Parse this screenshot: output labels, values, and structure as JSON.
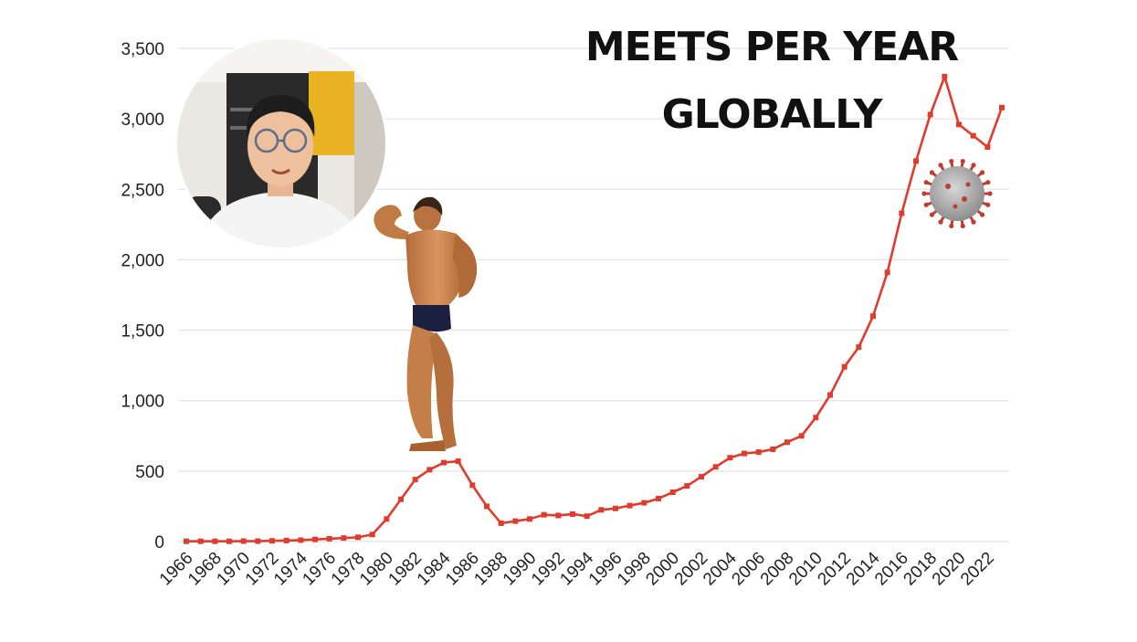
{
  "chart_data": {
    "type": "line",
    "title": [
      "MEETS PER YEAR",
      "GLOBALLY"
    ],
    "xlabel": "",
    "ylabel": "",
    "ylim": [
      0,
      3500
    ],
    "yticks": [
      0,
      500,
      1000,
      1500,
      2000,
      2500,
      3000,
      3500
    ],
    "ytick_labels": [
      "0",
      "500",
      "1,000",
      "1,500",
      "2,000",
      "2,500",
      "3,000",
      "3,500"
    ],
    "xlim": [
      1966,
      2023
    ],
    "xtick_labels": [
      "1966",
      "1968",
      "1970",
      "1972",
      "1974",
      "1976",
      "1978",
      "1980",
      "1982",
      "1984",
      "1986",
      "1988",
      "1990",
      "1992",
      "1994",
      "1996",
      "1998",
      "2000",
      "2002",
      "2004",
      "2006",
      "2008",
      "2010",
      "2012",
      "2014",
      "2016",
      "2018",
      "2020",
      "2022"
    ],
    "grid": true,
    "legend": "none",
    "series": [
      {
        "color": "#e03c2d",
        "x": [
          1966,
          1967,
          1968,
          1969,
          1970,
          1971,
          1972,
          1973,
          1974,
          1975,
          1976,
          1977,
          1978,
          1979,
          1980,
          1981,
          1982,
          1983,
          1984,
          1985,
          1986,
          1987,
          1988,
          1989,
          1990,
          1991,
          1992,
          1993,
          1994,
          1995,
          1996,
          1997,
          1998,
          1999,
          2000,
          2001,
          2002,
          2003,
          2004,
          2005,
          2006,
          2007,
          2008,
          2009,
          2010,
          2011,
          2012,
          2013,
          2014,
          2015,
          2016,
          2017,
          2018,
          2019,
          2020,
          2021,
          2022,
          2023
        ],
        "values": [
          2,
          2,
          2,
          2,
          3,
          3,
          5,
          7,
          10,
          15,
          20,
          25,
          30,
          50,
          160,
          300,
          440,
          510,
          560,
          570,
          400,
          250,
          130,
          145,
          160,
          190,
          185,
          195,
          180,
          225,
          235,
          255,
          275,
          305,
          350,
          395,
          460,
          530,
          595,
          625,
          635,
          655,
          705,
          750,
          880,
          1040,
          1240,
          1380,
          1600,
          1910,
          2330,
          2700,
          3030,
          3300,
          2960,
          2880,
          2800,
          3080
        ]
      }
    ]
  },
  "images": {
    "webcam": {
      "label": "webcam-inset",
      "desc_icon": "person-avatar-icon"
    },
    "bodybuilder": {
      "desc_icon": "flexing-bodybuilder-icon"
    },
    "virus": {
      "desc_icon": "coronavirus-icon"
    }
  },
  "colors": {
    "line": "#e03c2d",
    "grid": "#dddddd",
    "text": "#222222",
    "accent_yellow": "#f0b429"
  }
}
